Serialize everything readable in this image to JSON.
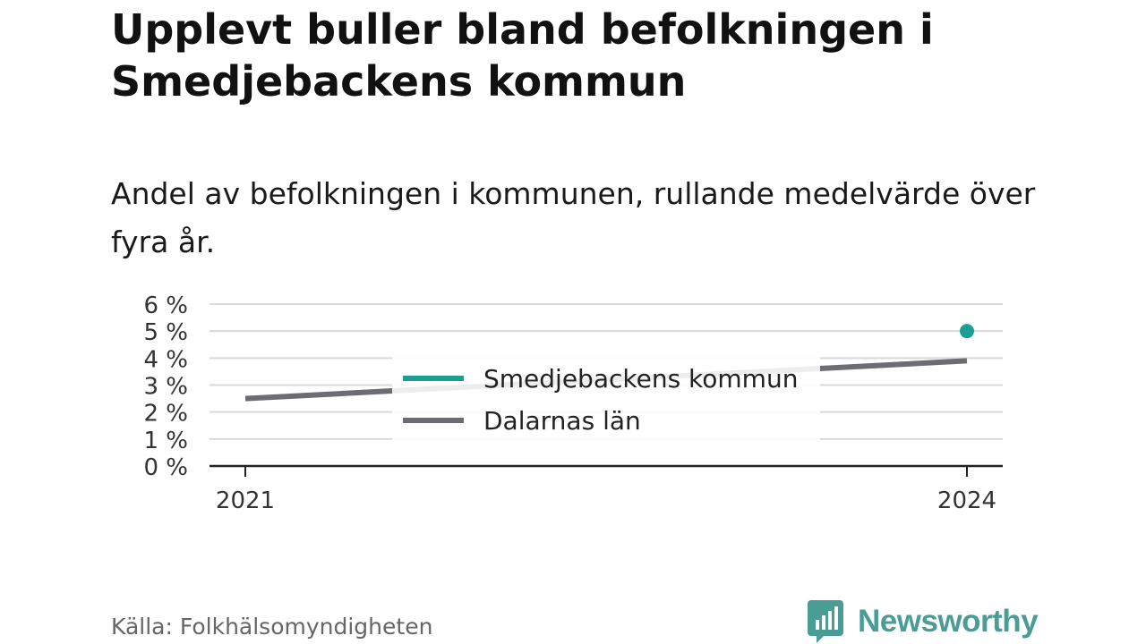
{
  "header": {
    "title": "Upplevt buller bland befolkningen i Smedjebackens kommun",
    "subtitle": "Andel av befolkningen i kommunen, rullande medelvärde över fyra år."
  },
  "footer": {
    "source": "Källa: Folkhälsomyndigheten",
    "brand": "Newsworthy",
    "brand_icon": "bar-chart-bubble-icon"
  },
  "colors": {
    "smedjebacken": "#1a9e96",
    "dalarna": "#6e6c73",
    "grid": "#d9d9d9",
    "axis": "#222222",
    "brand": "#4a9d95"
  },
  "chart_data": {
    "type": "line",
    "title": "Upplevt buller bland befolkningen i Smedjebackens kommun",
    "subtitle": "Andel av befolkningen i kommunen, rullande medelvärde över fyra år.",
    "xlabel": "",
    "ylabel": "",
    "x_ticks": [
      "2021",
      "2024"
    ],
    "y_ticks": [
      "0 %",
      "1 %",
      "2 %",
      "3 %",
      "4 %",
      "5 %",
      "6 %"
    ],
    "ylim": [
      0,
      6
    ],
    "xlim": [
      2021,
      2024
    ],
    "grid": true,
    "legend_position": "center",
    "series": [
      {
        "name": "Smedjebackens kommun",
        "color": "#1a9e96",
        "points": [
          {
            "x": 2024,
            "y": 5.0
          }
        ]
      },
      {
        "name": "Dalarnas län",
        "color": "#6e6c73",
        "points": [
          {
            "x": 2021,
            "y": 2.5
          },
          {
            "x": 2024,
            "y": 3.9
          }
        ]
      }
    ]
  }
}
